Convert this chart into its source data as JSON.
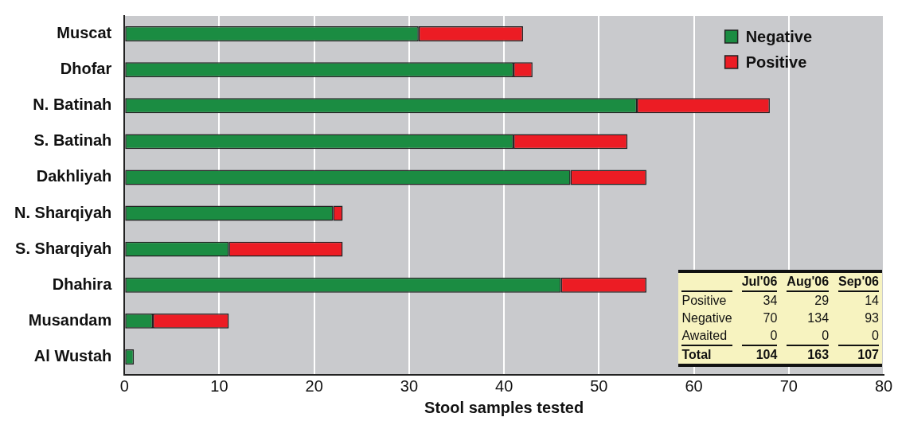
{
  "chart_data": {
    "type": "bar",
    "orientation": "horizontal",
    "stacked": true,
    "xlabel": "Stool samples tested",
    "categories": [
      "Muscat",
      "Dhofar",
      "N. Batinah",
      "S. Batinah",
      "Dakhliyah",
      "N. Sharqiyah",
      "S. Sharqiyah",
      "Dhahira",
      "Musandam",
      "Al Wustah"
    ],
    "series": [
      {
        "name": "Negative",
        "color": "#1b8c42",
        "values": [
          31,
          41,
          54,
          41,
          47,
          22,
          11,
          46,
          3,
          1
        ]
      },
      {
        "name": "Positive",
        "color": "#ec1c24",
        "values": [
          11,
          2,
          14,
          12,
          8,
          1,
          12,
          9,
          8,
          0
        ]
      }
    ],
    "xlim": [
      0,
      80
    ],
    "xticks": [
      0,
      10,
      20,
      30,
      40,
      50,
      60,
      70,
      80
    ],
    "grid": "x",
    "legend": "top right",
    "annotations": [
      "Jul'06",
      "Aug'06",
      "Sep'06",
      "Positive",
      "34",
      "29",
      "14",
      "Negative",
      "70",
      "134",
      "93",
      "Awaited",
      "0",
      "0",
      "0",
      "Total",
      "104",
      "163",
      "107"
    ]
  }
}
